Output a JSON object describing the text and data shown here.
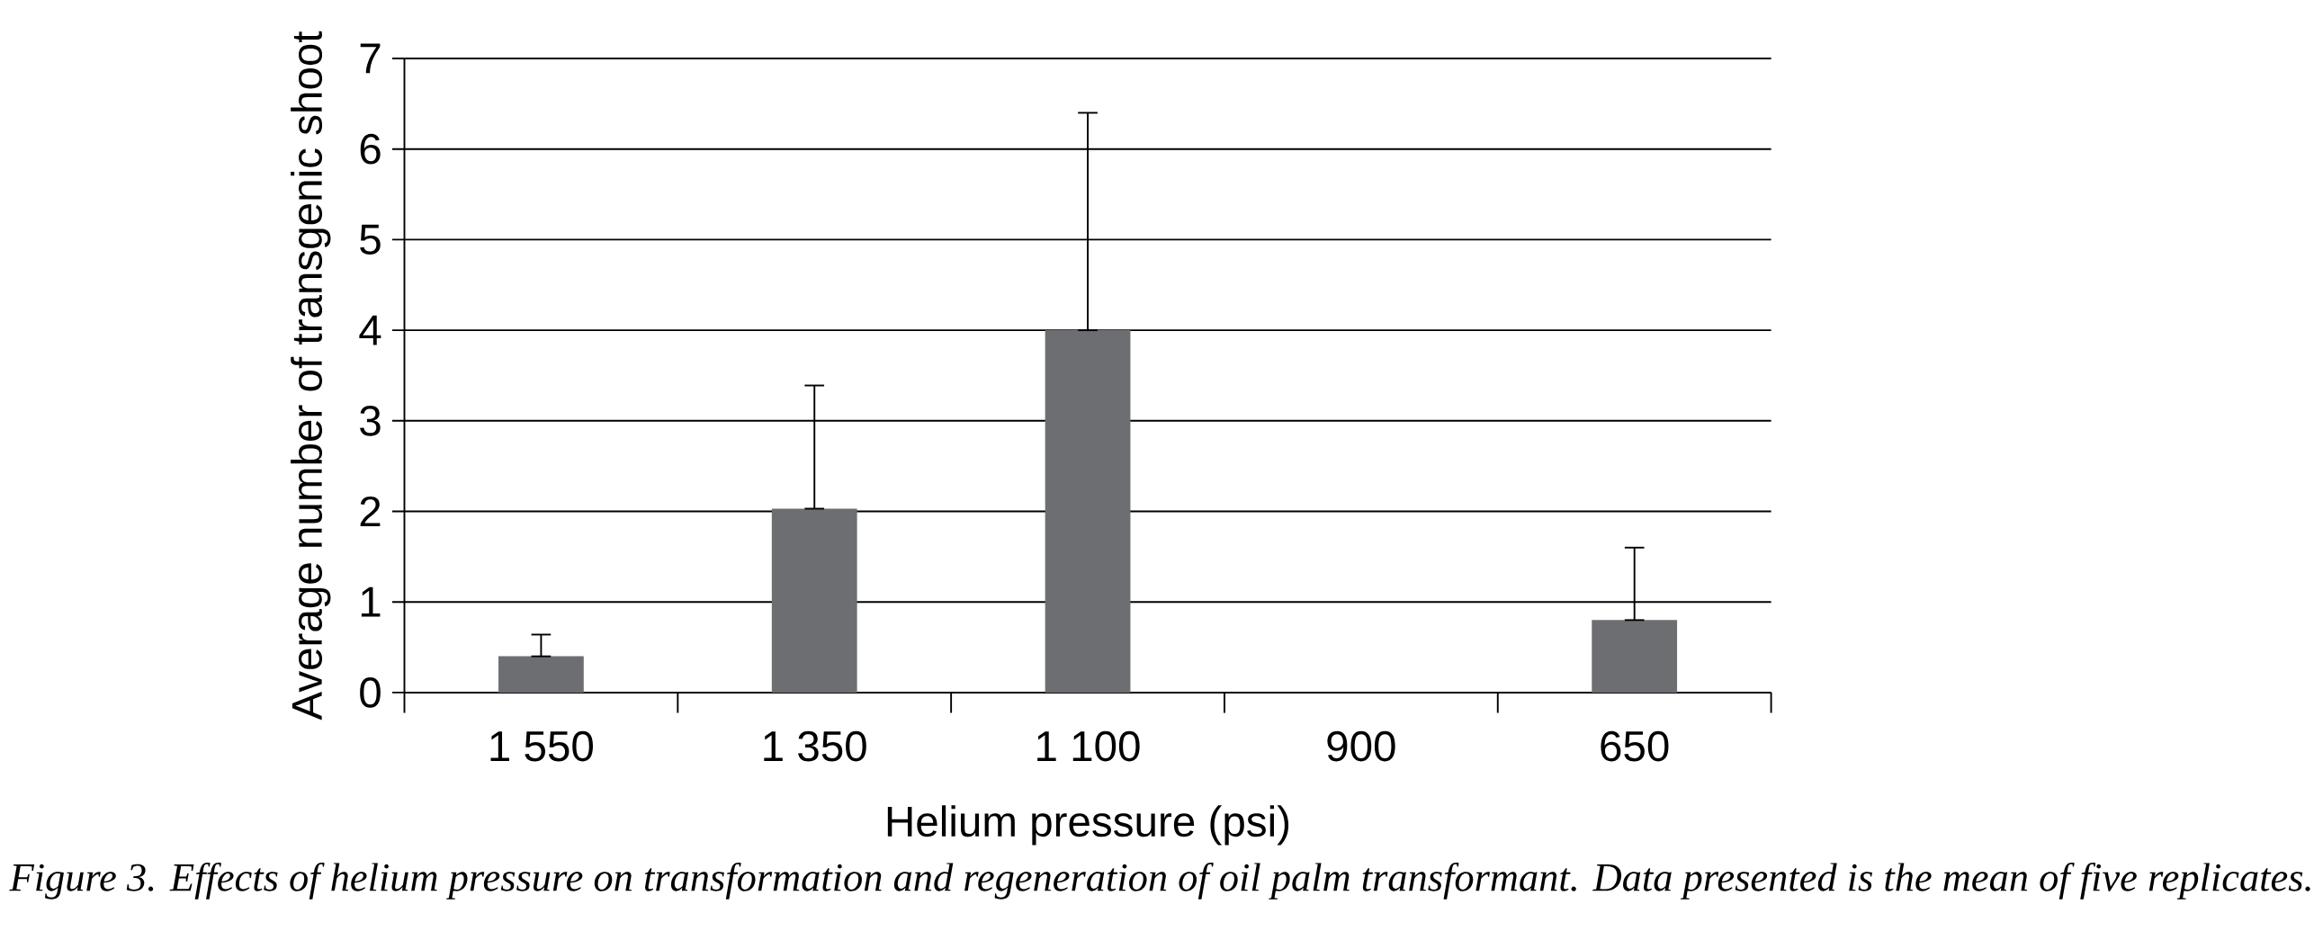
{
  "chart_data": {
    "type": "bar",
    "categories": [
      "1 550",
      "1 350",
      "1 100",
      "900",
      "650"
    ],
    "values": [
      0.4,
      2.03,
      4.0,
      0,
      0.8
    ],
    "errors": [
      [
        0.4,
        0.64
      ],
      [
        2.03,
        3.39
      ],
      [
        4.0,
        6.4
      ],
      null,
      [
        0.8,
        1.6
      ]
    ],
    "color": "#6d6e71",
    "xlabel": "Helium pressure (psi)",
    "ylabel": "Average number of transgenic shoot",
    "ylim": [
      0,
      7
    ],
    "yticks": [
      0,
      1,
      2,
      3,
      4,
      5,
      6,
      7
    ],
    "grid": "y",
    "annotations": [
      "*Figure 3. Effects of helium pressure on transformation and regeneration of oil palm transformant. Data presented is the mean of five replicates.*"
    ]
  }
}
